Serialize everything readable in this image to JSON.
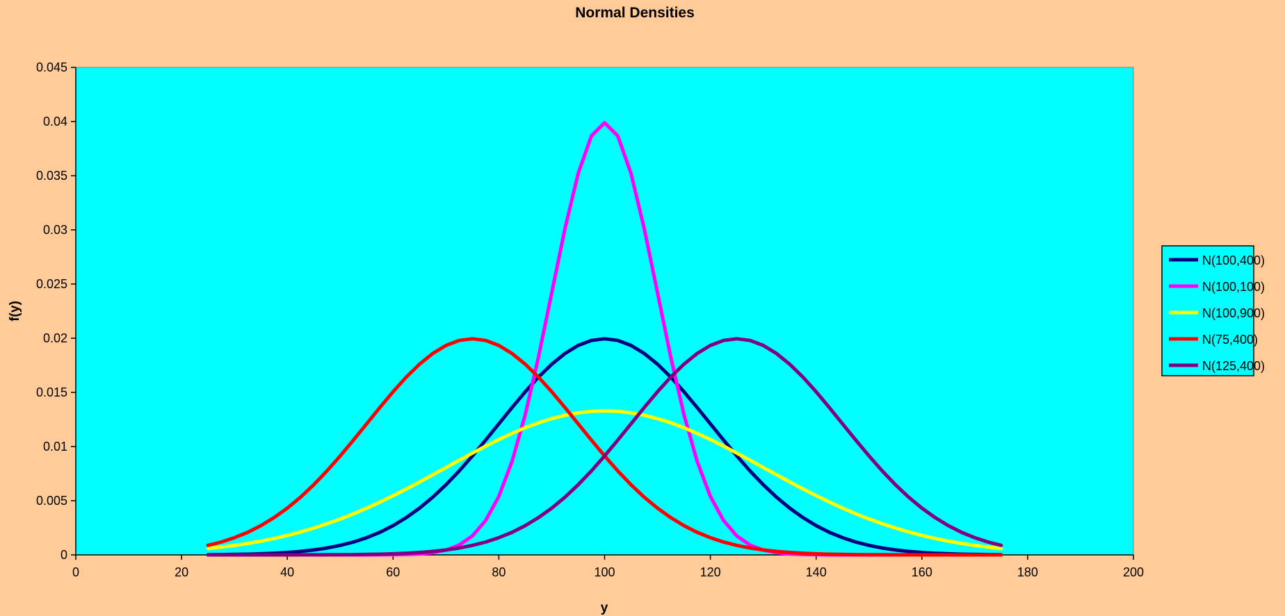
{
  "chart_data": {
    "type": "line",
    "title": "Normal Densities",
    "xlabel": "y",
    "ylabel": "f(y)",
    "xlim": [
      0,
      200
    ],
    "ylim": [
      0,
      0.045
    ],
    "x_ticks": [
      "0",
      "20",
      "40",
      "60",
      "80",
      "100",
      "120",
      "140",
      "160",
      "180",
      "200"
    ],
    "y_ticks": [
      "0",
      "0.005",
      "0.01",
      "0.015",
      "0.02",
      "0.025",
      "0.03",
      "0.035",
      "0.04",
      "0.045"
    ],
    "grid": false,
    "legend_position": "right",
    "x_range": [
      25,
      175
    ],
    "x_step": 2.5,
    "series": [
      {
        "name": "N(100,400)",
        "color": "#000080",
        "mean": 100,
        "variance": 400,
        "peak": 0.0199
      },
      {
        "name": "N(100,100)",
        "color": "#ff00ff",
        "mean": 100,
        "variance": 100,
        "peak": 0.0399
      },
      {
        "name": "N(100,900)",
        "color": "#ffff00",
        "mean": 100,
        "variance": 900,
        "peak": 0.0133
      },
      {
        "name": "N(75,400)",
        "color": "#ff0000",
        "mean": 75,
        "variance": 400,
        "peak": 0.0199
      },
      {
        "name": "N(125,400)",
        "color": "#800080",
        "mean": 125,
        "variance": 400,
        "peak": 0.0199
      }
    ]
  },
  "colors": {
    "page_background": "#ffcc99",
    "plot_background": "#00ffff",
    "legend_background": "#00ffff"
  }
}
